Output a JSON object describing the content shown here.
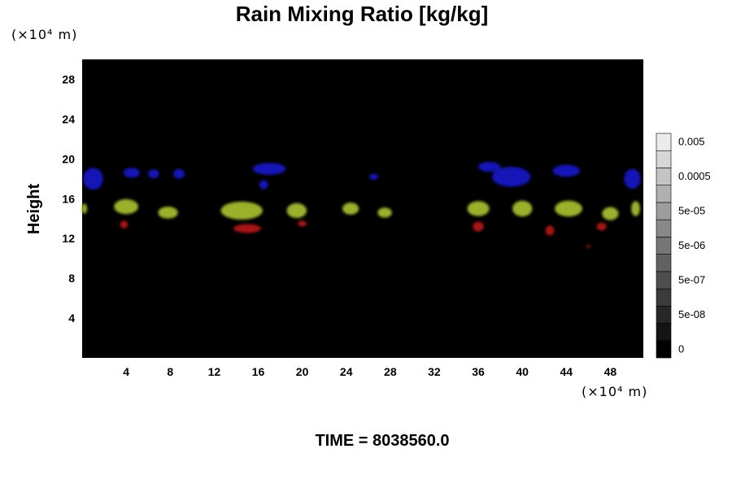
{
  "chart_data": {
    "type": "heatmap",
    "title": "Rain Mixing Ratio [kg/kg]",
    "ylabel": "Height",
    "xlabel": "",
    "x_unit": "(×10⁴ m)",
    "y_unit": "(×10⁴ m)",
    "time_label": "TIME = 8038560.0",
    "xlim": [
      0,
      51
    ],
    "ylim": [
      0,
      30
    ],
    "x_ticks": [
      "4",
      "8",
      "12",
      "16",
      "20",
      "24",
      "28",
      "32",
      "36",
      "40",
      "44",
      "48"
    ],
    "x_tick_values": [
      4,
      8,
      12,
      16,
      20,
      24,
      28,
      32,
      36,
      40,
      44,
      48
    ],
    "y_ticks": [
      "4",
      "8",
      "12",
      "16",
      "20",
      "24",
      "28"
    ],
    "y_tick_values": [
      4,
      8,
      12,
      16,
      20,
      24,
      28
    ],
    "background_color": "#000000",
    "colorbar": {
      "levels": 13,
      "labels": [
        "0",
        "5e-08",
        "5e-07",
        "5e-06",
        "5e-05",
        "0.0005",
        "0.005"
      ]
    },
    "blobs": [
      {
        "layer": "upper",
        "color": "#1a1ac8",
        "x": 1.0,
        "y": 18.0,
        "w": 1.8,
        "h": 2.2
      },
      {
        "layer": "upper",
        "color": "#1a1ac8",
        "x": 4.5,
        "y": 18.6,
        "w": 1.5,
        "h": 1.0
      },
      {
        "layer": "upper",
        "color": "#1a1ac8",
        "x": 6.5,
        "y": 18.5,
        "w": 1.0,
        "h": 0.9
      },
      {
        "layer": "upper",
        "color": "#1a1ac8",
        "x": 8.8,
        "y": 18.5,
        "w": 1.0,
        "h": 1.0
      },
      {
        "layer": "upper",
        "color": "#1a1ac8",
        "x": 17.0,
        "y": 19.0,
        "w": 3.0,
        "h": 1.2
      },
      {
        "layer": "upper",
        "color": "#1a1ac8",
        "x": 16.5,
        "y": 17.4,
        "w": 0.8,
        "h": 0.9
      },
      {
        "layer": "upper",
        "color": "#1a1ac8",
        "x": 26.5,
        "y": 18.2,
        "w": 0.8,
        "h": 0.6
      },
      {
        "layer": "upper",
        "color": "#1a1ac8",
        "x": 39.0,
        "y": 18.2,
        "w": 3.5,
        "h": 2.0
      },
      {
        "layer": "upper",
        "color": "#1a1ac8",
        "x": 37.0,
        "y": 19.2,
        "w": 2.0,
        "h": 1.0
      },
      {
        "layer": "upper",
        "color": "#1a1ac8",
        "x": 44.0,
        "y": 18.8,
        "w": 2.5,
        "h": 1.2
      },
      {
        "layer": "upper",
        "color": "#1a1ac8",
        "x": 50.0,
        "y": 18.0,
        "w": 1.5,
        "h": 2.0
      },
      {
        "layer": "middle",
        "color": "#a8c030",
        "x": 0.2,
        "y": 15.0,
        "w": 0.5,
        "h": 1.0
      },
      {
        "layer": "middle",
        "color": "#a8c030",
        "x": 4.0,
        "y": 15.2,
        "w": 2.2,
        "h": 1.5
      },
      {
        "layer": "middle",
        "color": "#a8c030",
        "x": 7.8,
        "y": 14.6,
        "w": 1.8,
        "h": 1.2
      },
      {
        "layer": "middle",
        "color": "#a8c030",
        "x": 14.5,
        "y": 14.8,
        "w": 3.8,
        "h": 1.8
      },
      {
        "layer": "middle",
        "color": "#a8c030",
        "x": 19.5,
        "y": 14.8,
        "w": 1.8,
        "h": 1.5
      },
      {
        "layer": "middle",
        "color": "#a8c030",
        "x": 24.4,
        "y": 15.0,
        "w": 1.5,
        "h": 1.2
      },
      {
        "layer": "middle",
        "color": "#a8c030",
        "x": 27.5,
        "y": 14.6,
        "w": 1.3,
        "h": 1.0
      },
      {
        "layer": "middle",
        "color": "#a8c030",
        "x": 36.0,
        "y": 15.0,
        "w": 2.0,
        "h": 1.5
      },
      {
        "layer": "middle",
        "color": "#a8c030",
        "x": 40.0,
        "y": 15.0,
        "w": 1.8,
        "h": 1.6
      },
      {
        "layer": "middle",
        "color": "#a8c030",
        "x": 44.2,
        "y": 15.0,
        "w": 2.5,
        "h": 1.6
      },
      {
        "layer": "middle",
        "color": "#a8c030",
        "x": 48.0,
        "y": 14.5,
        "w": 1.5,
        "h": 1.3
      },
      {
        "layer": "middle",
        "color": "#a8c030",
        "x": 50.3,
        "y": 15.0,
        "w": 0.8,
        "h": 1.5
      },
      {
        "layer": "lower",
        "color": "#b41414",
        "x": 3.8,
        "y": 13.4,
        "w": 0.7,
        "h": 0.8
      },
      {
        "layer": "lower",
        "color": "#b41414",
        "x": 15.0,
        "y": 13.0,
        "w": 2.5,
        "h": 0.9
      },
      {
        "layer": "lower",
        "color": "#b41414",
        "x": 20.0,
        "y": 13.5,
        "w": 0.8,
        "h": 0.6
      },
      {
        "layer": "lower",
        "color": "#b41414",
        "x": 36.0,
        "y": 13.2,
        "w": 1.0,
        "h": 1.0
      },
      {
        "layer": "lower",
        "color": "#b41414",
        "x": 42.5,
        "y": 12.8,
        "w": 0.8,
        "h": 1.0
      },
      {
        "layer": "lower",
        "color": "#b41414",
        "x": 47.2,
        "y": 13.2,
        "w": 0.9,
        "h": 0.8
      },
      {
        "layer": "lower",
        "color": "#b41414",
        "x": 46.0,
        "y": 11.2,
        "w": 0.2,
        "h": 0.2
      }
    ]
  }
}
